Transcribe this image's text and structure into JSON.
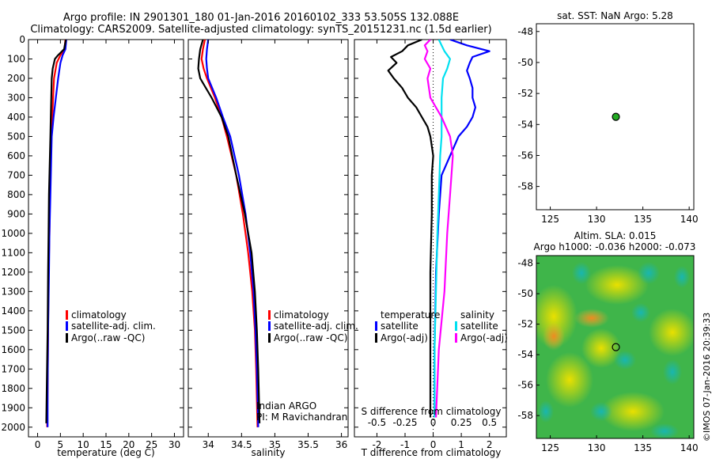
{
  "header": {
    "line1": "Argo profile: IN 2901301_180 01-Jan-2016 20160102_333 53.505S 132.088E",
    "line2": "Climatology: CARS2009. Satellite-adjusted climatology: synTS_20151231.nc (1.5d earlier)"
  },
  "footer": {
    "watermark": "©IMOS 07-Jan-2016 20:39:33"
  },
  "colors": {
    "climatology": "#ff0000",
    "satellite": "#0000ff",
    "argo": "#000000",
    "cyan": "#00e0f0",
    "magenta": "#ff00ff",
    "marker": "#22aa22"
  },
  "chart_data": [
    {
      "type": "line",
      "name": "temperature-profile",
      "xlabel": "temperature (deg C)",
      "xlim": [
        -2,
        32
      ],
      "ylim": [
        0,
        2050
      ],
      "y_reversed": true,
      "xticks": [
        0,
        5,
        10,
        15,
        20,
        25,
        30
      ],
      "yticks": [
        0,
        100,
        200,
        300,
        400,
        500,
        600,
        700,
        800,
        900,
        1000,
        1100,
        1200,
        1300,
        1400,
        1500,
        1600,
        1700,
        1800,
        1900,
        2000
      ],
      "legend": [
        "climatology",
        "satellite-adj. clim.",
        "Argo(..raw -QC)"
      ],
      "legend_position": "lower-center",
      "series": [
        {
          "name": "climatology",
          "color": "#ff0000",
          "depth": [
            0,
            50,
            80,
            120,
            200,
            300,
            400,
            500,
            600,
            800,
            1000,
            1200,
            1500,
            1800,
            2000
          ],
          "values": [
            6.1,
            5.9,
            5.0,
            4.2,
            3.6,
            3.4,
            3.2,
            3.0,
            2.9,
            2.7,
            2.6,
            2.4,
            2.3,
            2.2,
            2.1
          ]
        },
        {
          "name": "satellite-adj. clim.",
          "color": "#0000ff",
          "depth": [
            0,
            50,
            80,
            120,
            200,
            300,
            400,
            500,
            600,
            800,
            1000,
            1200,
            1500,
            1800,
            2000
          ],
          "values": [
            6.3,
            6.1,
            5.5,
            5.0,
            4.5,
            4.0,
            3.5,
            3.1,
            3.0,
            2.8,
            2.6,
            2.5,
            2.3,
            2.2,
            2.2
          ]
        },
        {
          "name": "Argo(..raw -QC)",
          "color": "#000000",
          "depth": [
            0,
            50,
            80,
            100,
            150,
            200,
            300,
            400,
            500,
            600,
            800,
            1000,
            1200,
            1500,
            1800,
            1980
          ],
          "values": [
            6.2,
            5.8,
            4.5,
            3.8,
            3.3,
            3.1,
            3.0,
            2.9,
            2.8,
            2.7,
            2.5,
            2.4,
            2.3,
            2.2,
            2.0,
            1.9
          ]
        }
      ]
    },
    {
      "type": "line",
      "name": "salinity-profile",
      "xlabel": "salinity",
      "xlim": [
        33.7,
        36.1
      ],
      "ylim": [
        0,
        2050
      ],
      "y_reversed": true,
      "xticks": [
        34,
        34.5,
        35,
        35.5,
        36
      ],
      "legend": [
        "climatology",
        "satellite-adj. clim.",
        "Argo(..raw -QC)"
      ],
      "annotation": [
        "Indian ARGO",
        "PI: M Ravichandran"
      ],
      "series": [
        {
          "name": "climatology",
          "color": "#ff0000",
          "depth": [
            0,
            50,
            100,
            150,
            200,
            300,
            400,
            500,
            700,
            900,
            1100,
            1300,
            1500,
            1700,
            2000
          ],
          "values": [
            33.95,
            33.92,
            33.9,
            33.93,
            33.98,
            34.1,
            34.2,
            34.28,
            34.42,
            34.52,
            34.6,
            34.66,
            34.7,
            34.72,
            34.74
          ]
        },
        {
          "name": "satellite-adj. clim.",
          "color": "#0000ff",
          "depth": [
            0,
            50,
            100,
            150,
            200,
            300,
            400,
            500,
            700,
            900,
            1100,
            1300,
            1500,
            1700,
            2000
          ],
          "values": [
            34.0,
            33.98,
            33.97,
            33.98,
            34.0,
            34.12,
            34.22,
            34.33,
            34.46,
            34.56,
            34.63,
            34.68,
            34.71,
            34.73,
            34.75
          ]
        },
        {
          "name": "Argo(..raw -QC)",
          "color": "#000000",
          "depth": [
            0,
            50,
            100,
            150,
            200,
            300,
            400,
            500,
            700,
            900,
            1100,
            1300,
            1500,
            1700,
            1980
          ],
          "values": [
            33.92,
            33.88,
            33.86,
            33.85,
            33.88,
            34.05,
            34.2,
            34.3,
            34.42,
            34.55,
            34.65,
            34.7,
            34.73,
            34.75,
            34.77
          ]
        }
      ]
    },
    {
      "type": "line",
      "name": "difference-profile",
      "xlabel": "T difference from climatology",
      "xlabel2": "S difference from climatology",
      "xlim": [
        -2.8,
        2.6
      ],
      "ylim": [
        0,
        2050
      ],
      "y_reversed": true,
      "xticks": [
        -2,
        -1,
        0,
        1,
        2
      ],
      "xticks_top_labels": [
        "-0.5",
        "-0.25",
        "0",
        "0.25",
        "0.5"
      ],
      "xticks_top_values": [
        -2,
        -1,
        0,
        1,
        2
      ],
      "legend_left_title": "temperature",
      "legend_right_title": "salinity",
      "legend_left": [
        "satellite",
        "Argo(-adj)"
      ],
      "legend_right": [
        "satellite",
        "Argo(-adj)"
      ],
      "series": [
        {
          "name": "T satellite",
          "color": "#0000ff",
          "depth": [
            0,
            30,
            60,
            90,
            120,
            160,
            200,
            250,
            300,
            350,
            400,
            450,
            500,
            600,
            700,
            900,
            1200,
            1600,
            1950
          ],
          "values": [
            0.6,
            1.2,
            2.0,
            1.4,
            1.3,
            1.2,
            1.3,
            1.4,
            1.4,
            1.5,
            1.4,
            1.2,
            0.9,
            0.6,
            0.3,
            0.2,
            0.1,
            0.05,
            0.05
          ]
        },
        {
          "name": "T Argo(-adj)",
          "color": "#000000",
          "depth": [
            0,
            30,
            60,
            90,
            120,
            160,
            200,
            250,
            300,
            350,
            400,
            450,
            500,
            600,
            700,
            900,
            1200,
            1600,
            1950
          ],
          "values": [
            -0.4,
            -0.9,
            -1.1,
            -1.5,
            -1.3,
            -1.6,
            -1.4,
            -1.1,
            -0.9,
            -0.6,
            -0.4,
            -0.2,
            -0.1,
            0.0,
            -0.05,
            -0.05,
            -0.1,
            -0.1,
            -0.1
          ]
        },
        {
          "name": "S satellite",
          "color": "#00e0f0",
          "depth": [
            0,
            30,
            60,
            100,
            150,
            200,
            300,
            400,
            500,
            600,
            800,
            1000,
            1300,
            1600,
            1950
          ],
          "values": [
            0.2,
            0.3,
            0.4,
            0.6,
            0.5,
            0.35,
            0.3,
            0.3,
            0.3,
            0.25,
            0.2,
            0.15,
            0.1,
            0.05,
            0.05
          ]
        },
        {
          "name": "S Argo(-adj)",
          "color": "#ff00ff",
          "depth": [
            0,
            30,
            60,
            100,
            150,
            200,
            300,
            400,
            500,
            600,
            800,
            1000,
            1300,
            1600,
            1950
          ],
          "values": [
            -0.1,
            -0.3,
            -0.2,
            -0.3,
            -0.1,
            -0.2,
            -0.1,
            0.3,
            0.6,
            0.7,
            0.6,
            0.5,
            0.4,
            0.2,
            0.1
          ]
        }
      ]
    },
    {
      "type": "scatter",
      "name": "sst-location-map",
      "title": "sat. SST: NaN Argo: 5.28",
      "xlim": [
        123.5,
        140.5
      ],
      "ylim": [
        -59.5,
        -47.5
      ],
      "xticks": [
        125,
        130,
        135,
        140
      ],
      "yticks": [
        -48,
        -50,
        -52,
        -54,
        -56,
        -58
      ],
      "points": [
        {
          "x": 132.088,
          "y": -53.505
        }
      ]
    },
    {
      "type": "heatmap",
      "name": "sla-map",
      "title": "Altim. SLA: 0.015",
      "subtitle": "Argo h1000: -0.036 h2000: -0.073",
      "xlim": [
        123.5,
        140.5
      ],
      "ylim": [
        -59.5,
        -47.5
      ],
      "xticks": [
        125,
        130,
        135,
        140
      ],
      "yticks": [
        -48,
        -50,
        -52,
        -54,
        -56,
        -58
      ],
      "points": [
        {
          "x": 132.088,
          "y": -53.505
        }
      ]
    }
  ]
}
